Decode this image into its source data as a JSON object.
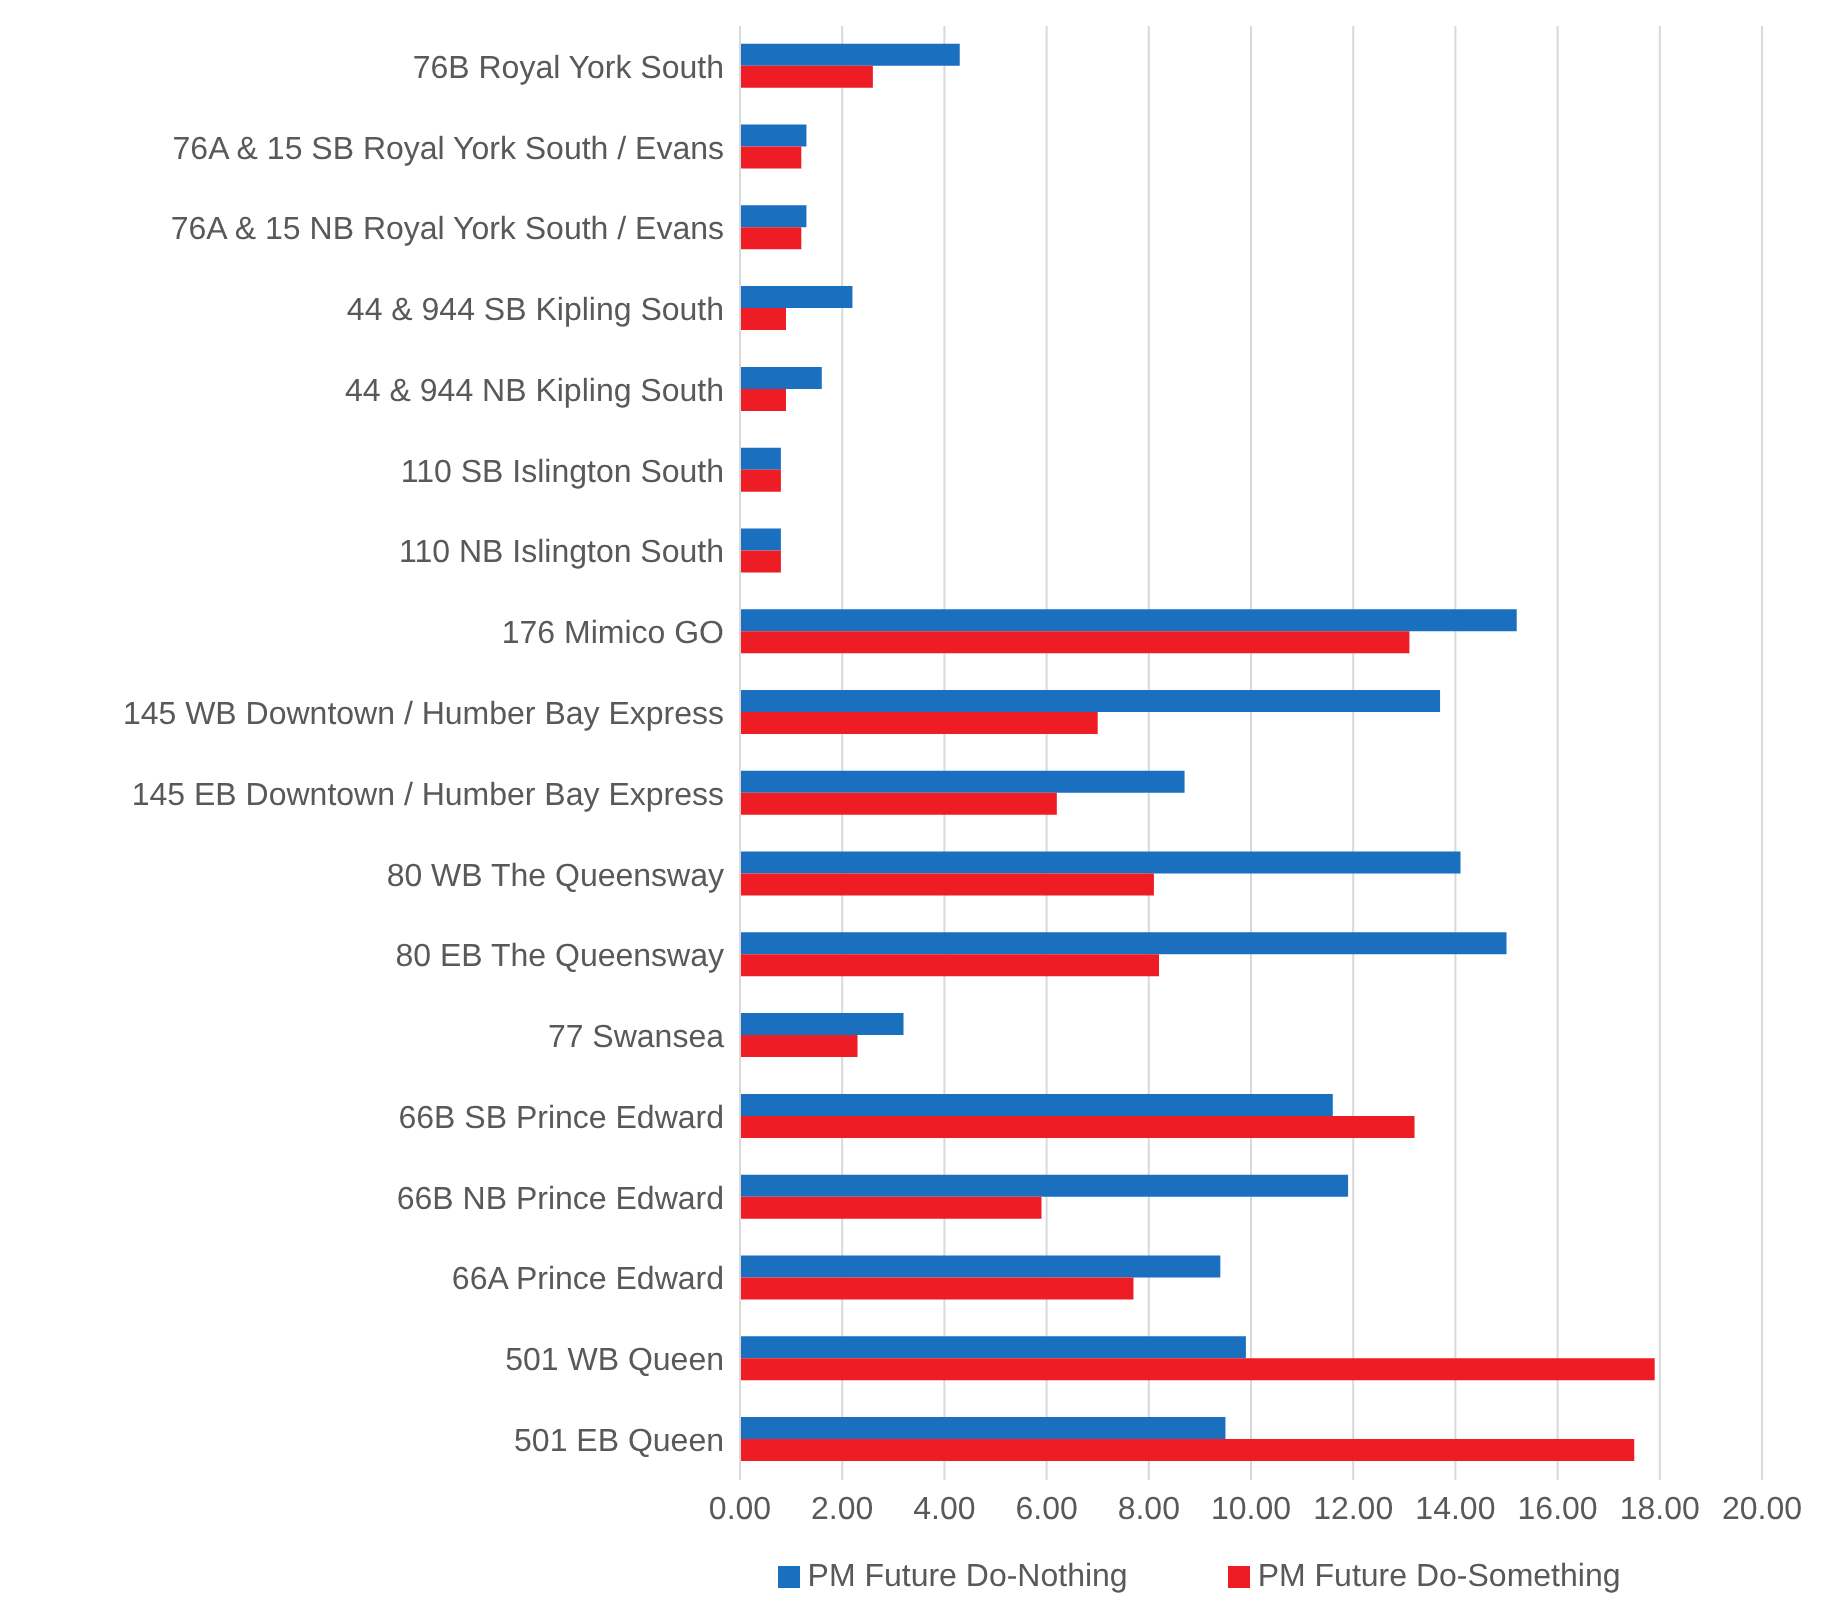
{
  "chart_data": {
    "type": "bar",
    "orientation": "horizontal",
    "categories": [
      "76B Royal York South",
      "76A & 15 SB Royal York South / Evans",
      "76A & 15 NB Royal York South / Evans",
      "44 & 944 SB Kipling South",
      "44 & 944 NB Kipling South",
      "110 SB Islington South",
      "110 NB Islington South",
      "176 Mimico GO",
      "145 WB Downtown / Humber Bay Express",
      "145 EB Downtown / Humber Bay Express",
      "80 WB The Queensway",
      "80 EB The Queensway",
      "77 Swansea",
      "66B SB Prince Edward",
      "66B NB Prince Edward",
      "66A Prince Edward",
      "501 WB Queen",
      "501 EB Queen"
    ],
    "series": [
      {
        "name": "PM Future Do-Nothing",
        "color": "#1a6fbf",
        "values": [
          4.3,
          1.3,
          1.3,
          2.2,
          1.6,
          0.8,
          0.8,
          15.2,
          13.7,
          8.7,
          14.1,
          15.0,
          3.2,
          11.6,
          11.9,
          9.4,
          9.9,
          9.5
        ]
      },
      {
        "name": "PM Future Do-Something",
        "color": "#ee1c25",
        "values": [
          2.6,
          1.2,
          1.2,
          0.9,
          0.9,
          0.8,
          0.8,
          13.1,
          7.0,
          6.2,
          8.1,
          8.2,
          2.3,
          13.2,
          5.9,
          7.7,
          17.9,
          17.5
        ]
      }
    ],
    "xlim": [
      0,
      20
    ],
    "xticks": [
      {
        "value": 0,
        "label": "0.00"
      },
      {
        "value": 2,
        "label": "2.00"
      },
      {
        "value": 4,
        "label": "4.00"
      },
      {
        "value": 6,
        "label": "6.00"
      },
      {
        "value": 8,
        "label": "8.00"
      },
      {
        "value": 10,
        "label": "10.00"
      },
      {
        "value": 12,
        "label": "12.00"
      },
      {
        "value": 14,
        "label": "14.00"
      },
      {
        "value": 16,
        "label": "16.00"
      },
      {
        "value": 18,
        "label": "18.00"
      },
      {
        "value": 20,
        "label": "20.00"
      }
    ],
    "grid": "x",
    "legend": "bottom"
  }
}
